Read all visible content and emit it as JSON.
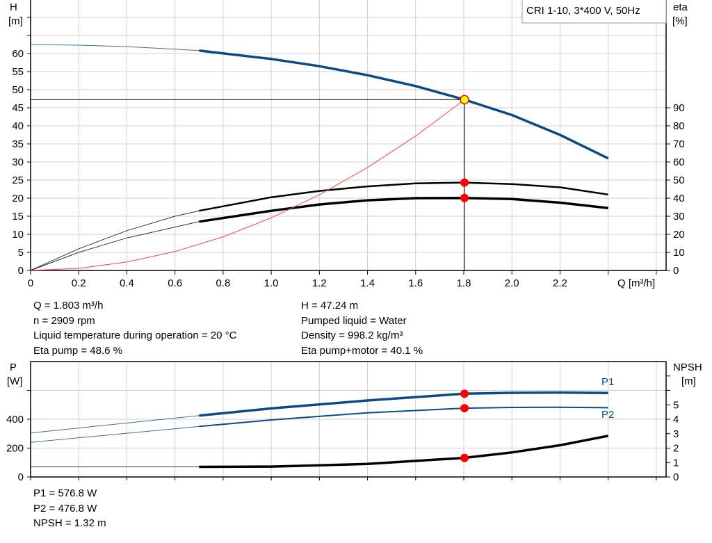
{
  "chart_data": [
    {
      "type": "line",
      "title": "CRI 1-10, 3*400 V, 50Hz",
      "xlabel": "Q [m³/h]",
      "ylabel_left": [
        "H",
        "[m]"
      ],
      "ylabel_right": [
        "eta",
        "[%]"
      ],
      "xlim": [
        0,
        2.65
      ],
      "ylim_left": [
        0,
        75
      ],
      "ylim_right": [
        0,
        150
      ],
      "grid": true,
      "x_ticks": [
        "0",
        "0.2",
        "0.4",
        "0.6",
        "0.8",
        "1.0",
        "1.2",
        "1.4",
        "1.6",
        "1.8",
        "2.0",
        "2.2"
      ],
      "x_tick_values": [
        0,
        0.2,
        0.4,
        0.6,
        0.8,
        1.0,
        1.2,
        1.4,
        1.6,
        1.8,
        2.0,
        2.2
      ],
      "y_left_ticks": [
        "0",
        "5",
        "10",
        "15",
        "20",
        "25",
        "30",
        "35",
        "40",
        "45",
        "50",
        "55",
        "60"
      ],
      "y_right_ticks": [
        "0",
        "10",
        "20",
        "30",
        "40",
        "50",
        "60",
        "70",
        "80",
        "90"
      ],
      "series": [
        {
          "key": "H",
          "axis": "left",
          "color": "#0b4a85",
          "width": 3.5,
          "x": [
            0,
            0.2,
            0.4,
            0.6,
            0.7,
            1.0,
            1.2,
            1.4,
            1.6,
            1.8,
            2.0,
            2.2,
            2.4
          ],
          "values": [
            62.5,
            62.3,
            61.9,
            61.2,
            60.8,
            58.5,
            56.5,
            54,
            51,
            47.3,
            43,
            37.5,
            31
          ],
          "thin_until": 0.7
        },
        {
          "key": "eta_pump",
          "axis": "right",
          "color": "#000000",
          "width": 2.5,
          "x": [
            0,
            0.2,
            0.4,
            0.6,
            0.7,
            1.0,
            1.2,
            1.4,
            1.6,
            1.8,
            2.0,
            2.2,
            2.4
          ],
          "values": [
            0,
            12,
            22,
            30,
            33,
            40.5,
            44,
            46.5,
            48.2,
            48.6,
            47.8,
            46,
            42
          ],
          "thin_until": 0.7
        },
        {
          "key": "eta_pump_motor",
          "axis": "right",
          "color": "#000000",
          "width": 3.5,
          "x": [
            0,
            0.2,
            0.4,
            0.6,
            0.7,
            1.0,
            1.2,
            1.4,
            1.6,
            1.8,
            2.0,
            2.2,
            2.4
          ],
          "values": [
            0,
            10,
            18,
            24,
            27,
            33,
            36.5,
            38.8,
            40,
            40.1,
            39.5,
            37.5,
            34.5
          ],
          "thin_until": 0.7
        },
        {
          "key": "system_curve",
          "axis": "left",
          "color": "#ff4040",
          "width": 1,
          "x": [
            0,
            0.2,
            0.4,
            0.6,
            0.8,
            1.0,
            1.2,
            1.4,
            1.6,
            1.803
          ],
          "values": [
            0,
            0.58,
            2.33,
            5.23,
            9.3,
            14.53,
            20.93,
            28.48,
            37.2,
            47.24
          ]
        }
      ],
      "duty_point": {
        "Q": 1.803,
        "H": 47.24,
        "eta_pump": 48.6,
        "eta_pump_motor": 40.1,
        "marker_color": "#ffff00",
        "dot_color": "#ff0000"
      }
    },
    {
      "type": "line",
      "xlim": [
        0,
        2.65
      ],
      "ylabel_left": [
        "P",
        "[W]"
      ],
      "ylabel_right": [
        "NPSH",
        "[m]"
      ],
      "ylim_left": [
        0,
        800
      ],
      "ylim_right": [
        0,
        8
      ],
      "grid": true,
      "y_left_ticks": [
        "0",
        "200",
        "400"
      ],
      "y_right_ticks": [
        "0",
        "1",
        "2",
        "3",
        "4",
        "5"
      ],
      "series": [
        {
          "name": "P1",
          "key": "P1",
          "axis": "left",
          "color": "#0b4a85",
          "width": 3.5,
          "x": [
            0,
            0.7,
            1.0,
            1.4,
            1.8,
            2.0,
            2.2,
            2.4
          ],
          "values": [
            305,
            425,
            475,
            530,
            576.8,
            583,
            585,
            582
          ],
          "thin_until": 0.7
        },
        {
          "name": "P2",
          "key": "P2",
          "axis": "left",
          "color": "#0b4a85",
          "width": 2,
          "x": [
            0,
            0.7,
            1.0,
            1.4,
            1.8,
            2.0,
            2.2,
            2.4
          ],
          "values": [
            240,
            350,
            395,
            445,
            476.8,
            482,
            483,
            480
          ],
          "thin_until": 0.7
        },
        {
          "key": "NPSH",
          "axis": "right",
          "color": "#000000",
          "width": 3.5,
          "x": [
            0,
            0.7,
            1.0,
            1.4,
            1.8,
            2.0,
            2.2,
            2.4
          ],
          "values": [
            0.7,
            0.7,
            0.72,
            0.9,
            1.32,
            1.7,
            2.2,
            2.85
          ],
          "thin_until": 0.7
        }
      ]
    }
  ],
  "info_top": {
    "left": [
      "Q = 1.803 m³/h",
      "n = 2909 rpm",
      "Liquid temperature during operation = 20 °C",
      "Eta pump = 48.6 %"
    ],
    "right": [
      "H = 47.24 m",
      "Pumped liquid = Water",
      "Density = 998.2 kg/m³",
      "Eta pump+motor = 40.1 %"
    ]
  },
  "info_bottom": [
    "P1 = 576.8 W",
    "P2 = 476.8 W",
    "NPSH = 1.32 m"
  ]
}
